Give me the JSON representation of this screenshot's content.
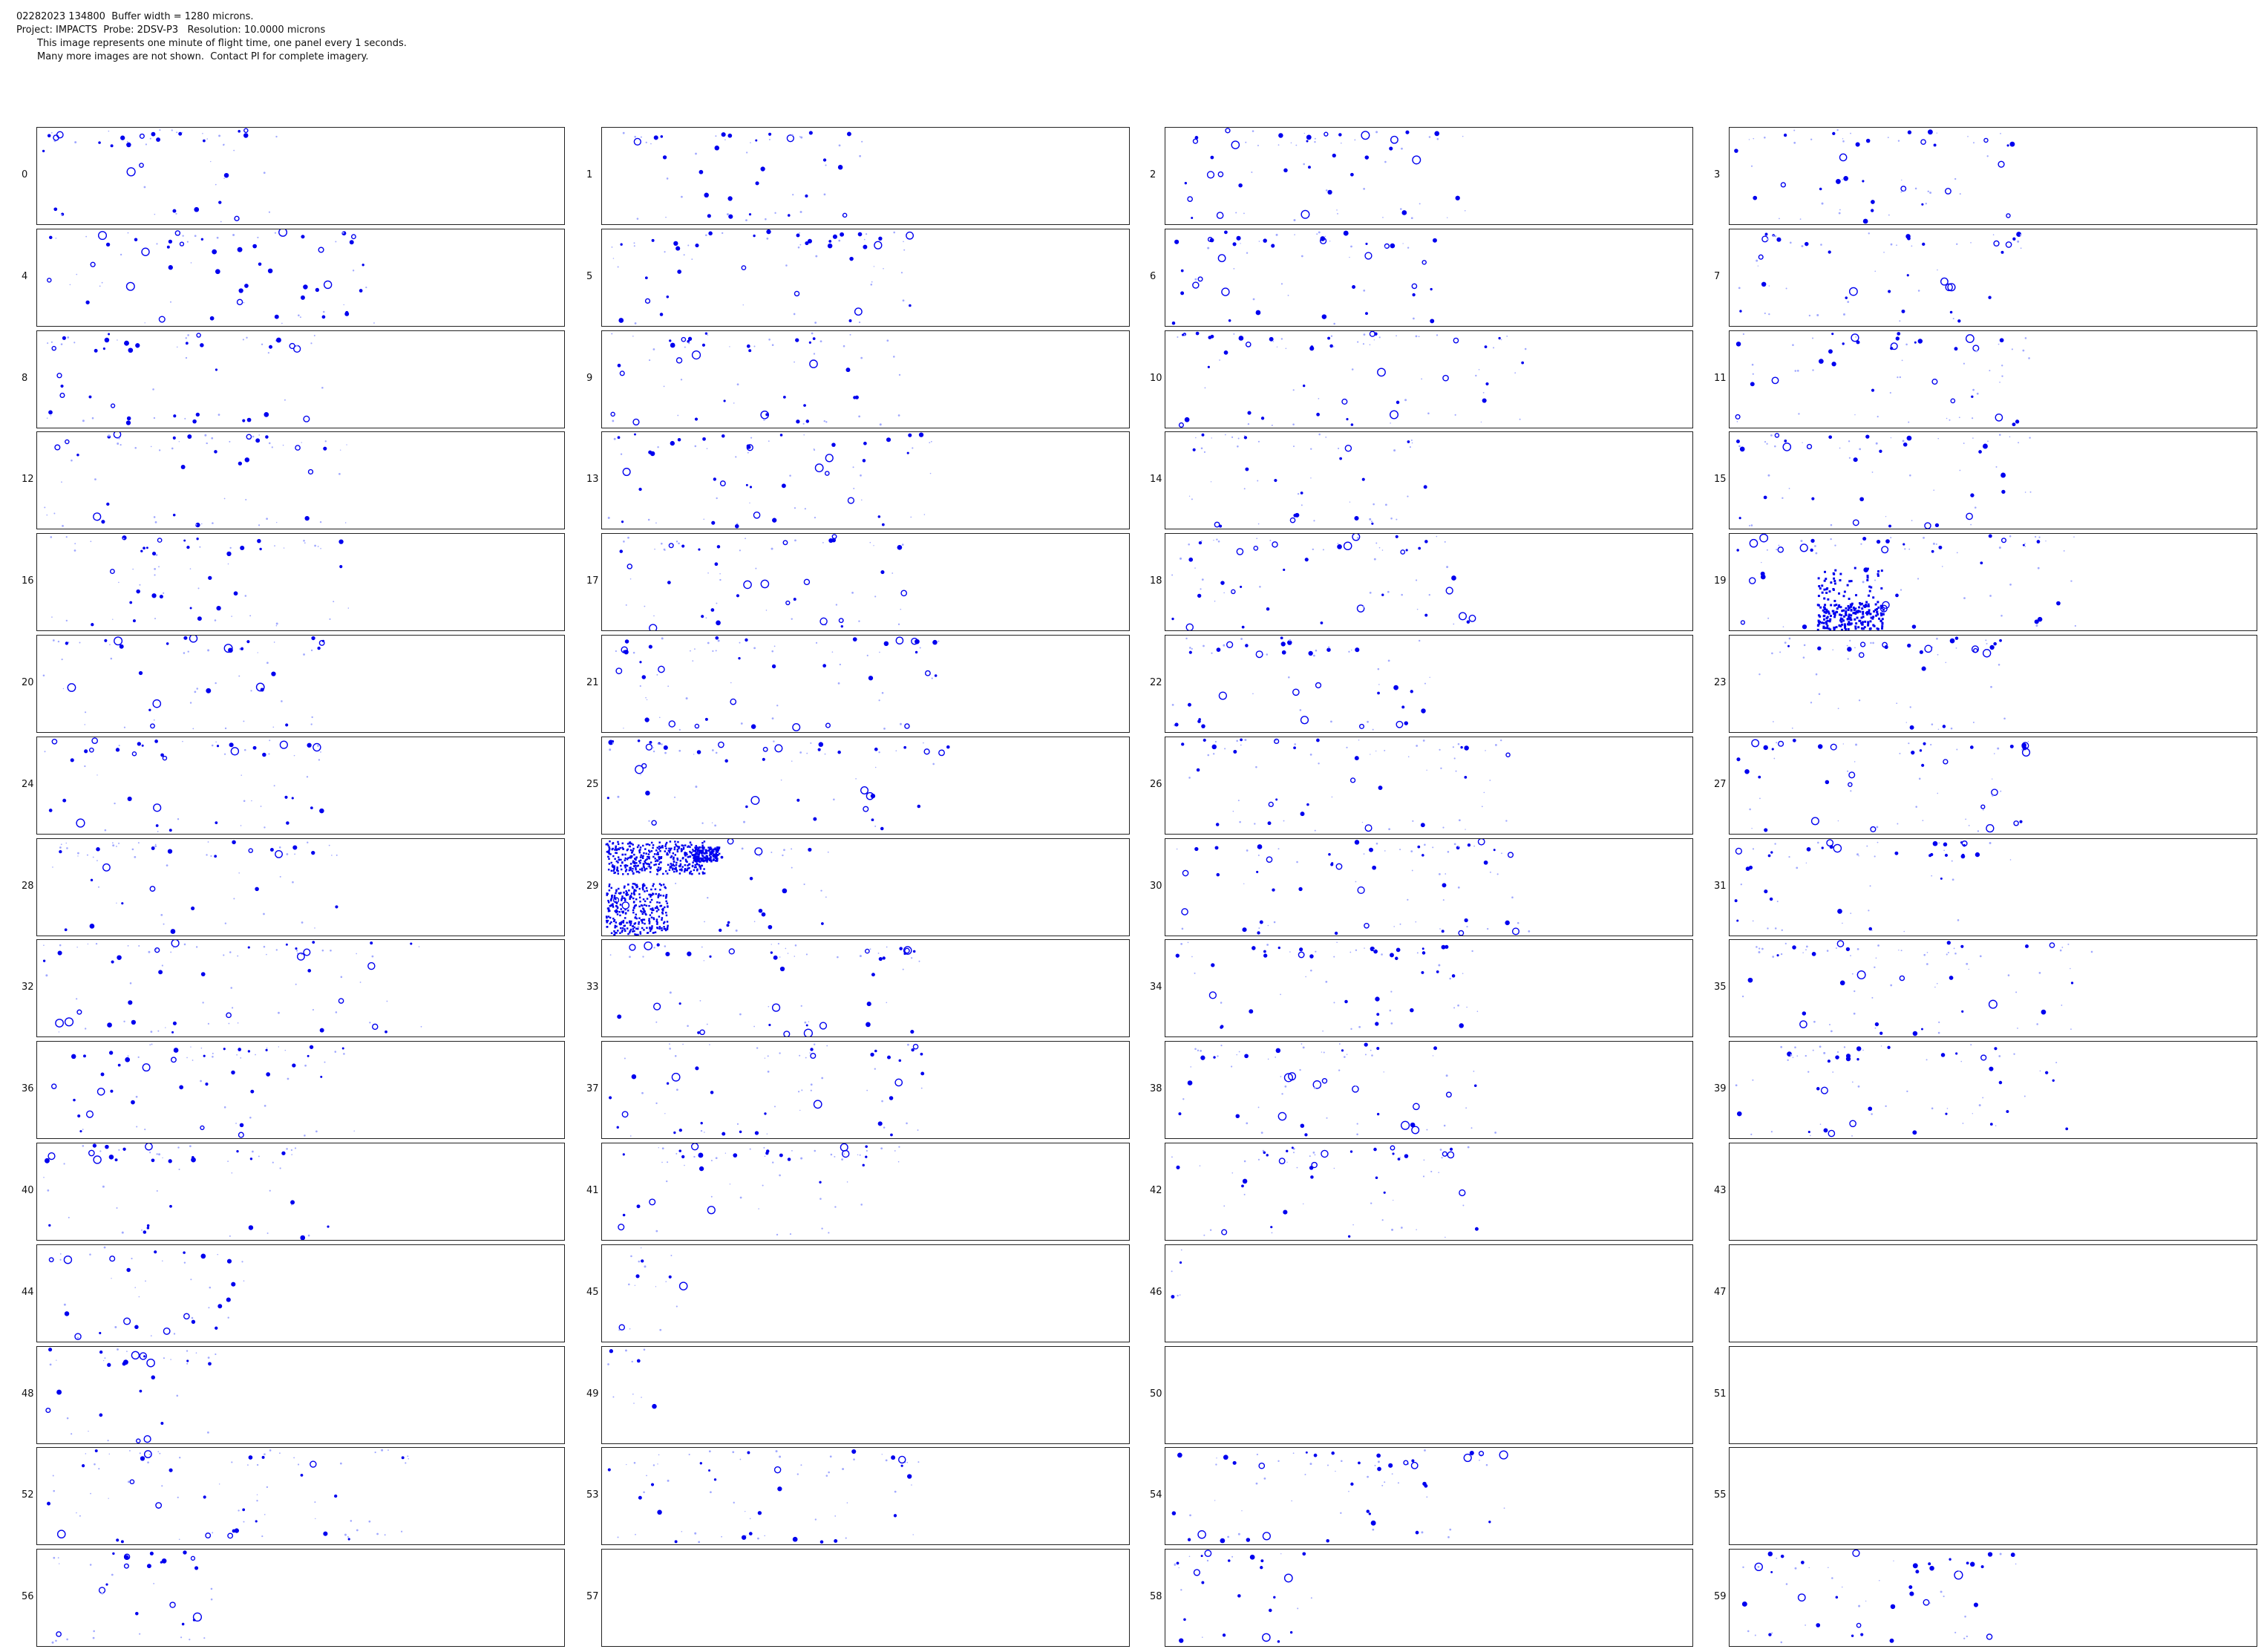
{
  "header": {
    "line1": "02282023 134800  Buffer width = 1280 microns.",
    "line2": "Project: IMPACTS  Probe: 2DSV-P3   Resolution: 10.0000 microns",
    "line3": "This image represents one minute of flight time, one panel every 1 seconds.",
    "line4": "Many more images are not shown.  Contact PI for complete imagery."
  },
  "colors": {
    "particle": "#0000ee",
    "faint": "#a0a8ff",
    "border": "#222222",
    "background": "#ffffff"
  },
  "panels": [
    {
      "label": "0",
      "density": 0.48
    },
    {
      "label": "1",
      "density": 0.5
    },
    {
      "label": "2",
      "density": 0.58
    },
    {
      "label": "3",
      "density": 0.55
    },
    {
      "label": "4",
      "density": 0.65
    },
    {
      "label": "5",
      "density": 0.6
    },
    {
      "label": "6",
      "density": 0.52
    },
    {
      "label": "7",
      "density": 0.56
    },
    {
      "label": "8",
      "density": 0.55
    },
    {
      "label": "9",
      "density": 0.58
    },
    {
      "label": "10",
      "density": 0.7
    },
    {
      "label": "11",
      "density": 0.58
    },
    {
      "label": "12",
      "density": 0.6
    },
    {
      "label": "13",
      "density": 0.64
    },
    {
      "label": "14",
      "density": 0.5
    },
    {
      "label": "15",
      "density": 0.58
    },
    {
      "label": "16",
      "density": 0.6
    },
    {
      "label": "17",
      "density": 0.58
    },
    {
      "label": "18",
      "density": 0.6
    },
    {
      "label": "19",
      "density": 0.67
    },
    {
      "label": "20",
      "density": 0.55
    },
    {
      "label": "21",
      "density": 0.66
    },
    {
      "label": "22",
      "density": 0.52
    },
    {
      "label": "23",
      "density": 0.54
    },
    {
      "label": "24",
      "density": 0.55
    },
    {
      "label": "25",
      "density": 0.67
    },
    {
      "label": "26",
      "density": 0.66
    },
    {
      "label": "27",
      "density": 0.58
    },
    {
      "label": "28",
      "density": 0.58
    },
    {
      "label": "29",
      "density": 0.45
    },
    {
      "label": "30",
      "density": 0.7
    },
    {
      "label": "31",
      "density": 0.55
    },
    {
      "label": "32",
      "density": 0.75
    },
    {
      "label": "33",
      "density": 0.62
    },
    {
      "label": "34",
      "density": 0.6
    },
    {
      "label": "35",
      "density": 0.72
    },
    {
      "label": "36",
      "density": 0.62
    },
    {
      "label": "37",
      "density": 0.64
    },
    {
      "label": "38",
      "density": 0.64
    },
    {
      "label": "39",
      "density": 0.65
    },
    {
      "label": "40",
      "density": 0.56
    },
    {
      "label": "41",
      "density": 0.6
    },
    {
      "label": "42",
      "density": 0.6
    },
    {
      "label": "43",
      "density": 0
    },
    {
      "label": "44",
      "density": 0.4
    },
    {
      "label": "45",
      "density": 0.16
    },
    {
      "label": "46",
      "density": 0.05
    },
    {
      "label": "47",
      "density": 0
    },
    {
      "label": "48",
      "density": 0.35
    },
    {
      "label": "49",
      "density": 0.1
    },
    {
      "label": "50",
      "density": 0
    },
    {
      "label": "51",
      "density": 0
    },
    {
      "label": "52",
      "density": 0.74
    },
    {
      "label": "53",
      "density": 0.63
    },
    {
      "label": "54",
      "density": 0.66
    },
    {
      "label": "55",
      "density": 0
    },
    {
      "label": "56",
      "density": 0.34
    },
    {
      "label": "57",
      "density": 0
    },
    {
      "label": "58",
      "density": 0.28
    },
    {
      "label": "59",
      "density": 0.55
    }
  ]
}
